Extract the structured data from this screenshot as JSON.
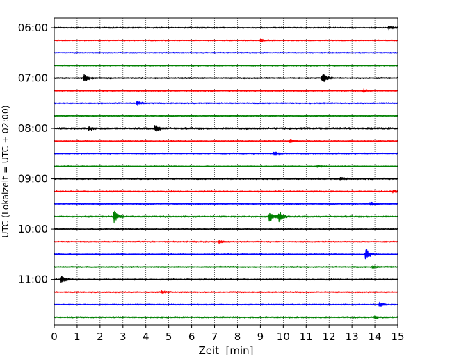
{
  "chart_data": {
    "type": "line",
    "title": "",
    "xlabel": "Zeit  [min]",
    "ylabel": "UTC (Lokalzeit = UTC + 02:00)",
    "xlim": [
      0,
      15
    ],
    "x_ticks": [
      "0",
      "1",
      "2",
      "3",
      "4",
      "5",
      "6",
      "7",
      "8",
      "9",
      "10",
      "11",
      "12",
      "13",
      "14",
      "15"
    ],
    "y_tick_labels": [
      "06:00",
      "07:00",
      "08:00",
      "09:00",
      "10:00",
      "11:00"
    ],
    "grid": "vertical dotted lines at each minute",
    "trace_interval_min": 15,
    "start_time": "06:00",
    "colors": [
      "#000000",
      "#ff0000",
      "#0000ff",
      "#008000"
    ],
    "series": [
      {
        "start": "06:00",
        "color": "#000000",
        "noise": 0.8,
        "events": [
          {
            "t": 14.6,
            "amp": 3.0
          }
        ]
      },
      {
        "start": "06:15",
        "color": "#ff0000",
        "noise": 0.7,
        "events": [
          {
            "t": 9.0,
            "amp": 2.5
          }
        ]
      },
      {
        "start": "06:30",
        "color": "#0000ff",
        "noise": 0.7,
        "events": []
      },
      {
        "start": "06:45",
        "color": "#008000",
        "noise": 0.8,
        "events": []
      },
      {
        "start": "07:00",
        "color": "#000000",
        "noise": 0.9,
        "events": [
          {
            "t": 1.3,
            "amp": 5.0
          },
          {
            "t": 11.7,
            "amp": 8.0
          }
        ]
      },
      {
        "start": "07:15",
        "color": "#ff0000",
        "noise": 0.8,
        "events": [
          {
            "t": 13.5,
            "amp": 2.5
          }
        ]
      },
      {
        "start": "07:30",
        "color": "#0000ff",
        "noise": 0.8,
        "events": [
          {
            "t": 3.6,
            "amp": 3.0
          }
        ]
      },
      {
        "start": "07:45",
        "color": "#008000",
        "noise": 0.9,
        "events": []
      },
      {
        "start": "08:00",
        "color": "#000000",
        "noise": 1.2,
        "events": [
          {
            "t": 1.5,
            "amp": 2.5
          },
          {
            "t": 4.4,
            "amp": 5.0
          }
        ]
      },
      {
        "start": "08:15",
        "color": "#ff0000",
        "noise": 0.7,
        "events": [
          {
            "t": 10.3,
            "amp": 3.0
          }
        ]
      },
      {
        "start": "08:30",
        "color": "#0000ff",
        "noise": 0.8,
        "events": [
          {
            "t": 9.6,
            "amp": 2.5
          }
        ]
      },
      {
        "start": "08:45",
        "color": "#008000",
        "noise": 0.7,
        "events": [
          {
            "t": 11.5,
            "amp": 2.0
          }
        ]
      },
      {
        "start": "09:00",
        "color": "#000000",
        "noise": 1.0,
        "events": [
          {
            "t": 12.5,
            "amp": 2.0
          }
        ]
      },
      {
        "start": "09:15",
        "color": "#ff0000",
        "noise": 0.9,
        "events": [
          {
            "t": 14.8,
            "amp": 2.0
          }
        ]
      },
      {
        "start": "09:30",
        "color": "#0000ff",
        "noise": 0.8,
        "events": [
          {
            "t": 13.8,
            "amp": 3.0
          }
        ]
      },
      {
        "start": "09:45",
        "color": "#008000",
        "noise": 1.0,
        "events": [
          {
            "t": 2.6,
            "amp": 9.0
          },
          {
            "t": 9.4,
            "amp": 9.0
          },
          {
            "t": 9.8,
            "amp": 8.0
          }
        ]
      },
      {
        "start": "10:00",
        "color": "#000000",
        "noise": 0.8,
        "events": []
      },
      {
        "start": "10:15",
        "color": "#ff0000",
        "noise": 0.8,
        "events": [
          {
            "t": 7.2,
            "amp": 2.0
          }
        ]
      },
      {
        "start": "10:30",
        "color": "#0000ff",
        "noise": 0.8,
        "events": [
          {
            "t": 13.6,
            "amp": 9.0
          }
        ]
      },
      {
        "start": "10:45",
        "color": "#008000",
        "noise": 0.9,
        "events": [
          {
            "t": 13.9,
            "amp": 2.0
          }
        ]
      },
      {
        "start": "11:00",
        "color": "#000000",
        "noise": 0.9,
        "events": [
          {
            "t": 0.3,
            "amp": 7.0
          }
        ]
      },
      {
        "start": "11:15",
        "color": "#ff0000",
        "noise": 0.8,
        "events": [
          {
            "t": 4.7,
            "amp": 2.0
          }
        ]
      },
      {
        "start": "11:30",
        "color": "#0000ff",
        "noise": 0.8,
        "events": [
          {
            "t": 14.2,
            "amp": 3.0
          }
        ]
      },
      {
        "start": "11:45",
        "color": "#008000",
        "noise": 1.0,
        "events": [
          {
            "t": 14.0,
            "amp": 2.0
          }
        ]
      }
    ]
  }
}
